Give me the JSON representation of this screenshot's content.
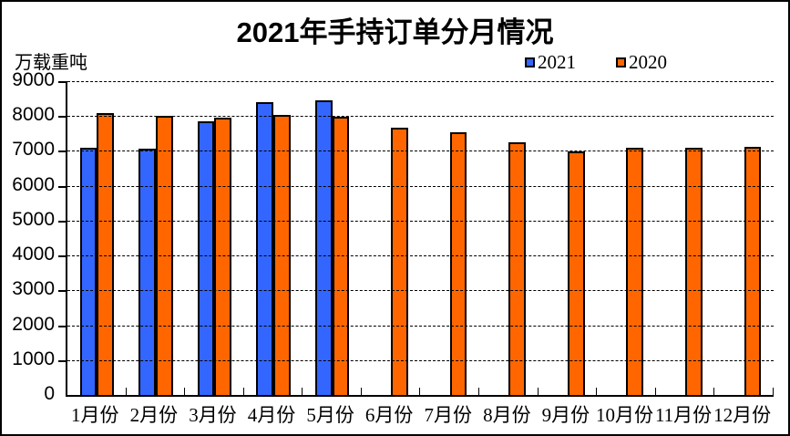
{
  "title": "2021年手持订单分月情况",
  "unit_label": "万载重吨",
  "colors": {
    "series_2021": "#3366FF",
    "series_2020": "#FF6600",
    "axis": "#000000",
    "background": "#FFFFFF"
  },
  "chart_data": {
    "type": "bar",
    "title": "2021年手持订单分月情况",
    "ylabel": "万载重吨",
    "xlabel": "",
    "categories": [
      "1月份",
      "2月份",
      "3月份",
      "4月份",
      "5月份",
      "6月份",
      "7月份",
      "8月份",
      "9月份",
      "10月份",
      "11月份",
      "12月份"
    ],
    "series": [
      {
        "name": "2021",
        "color": "#3366FF",
        "values": [
          7090,
          7060,
          7840,
          8390,
          8450,
          null,
          null,
          null,
          null,
          null,
          null,
          null
        ]
      },
      {
        "name": "2020",
        "color": "#FF6600",
        "values": [
          8090,
          8010,
          7960,
          8040,
          7980,
          7660,
          7540,
          7260,
          6980,
          7090,
          7090,
          7110
        ]
      }
    ],
    "ylim": [
      0,
      9000
    ],
    "ytick_step": 1000,
    "ytick_labels": [
      "0",
      "1000",
      "2000",
      "3000",
      "4000",
      "5000",
      "6000",
      "7000",
      "8000",
      "9000"
    ],
    "grid": "horizontal-dashed",
    "legend_position": "top-right"
  }
}
